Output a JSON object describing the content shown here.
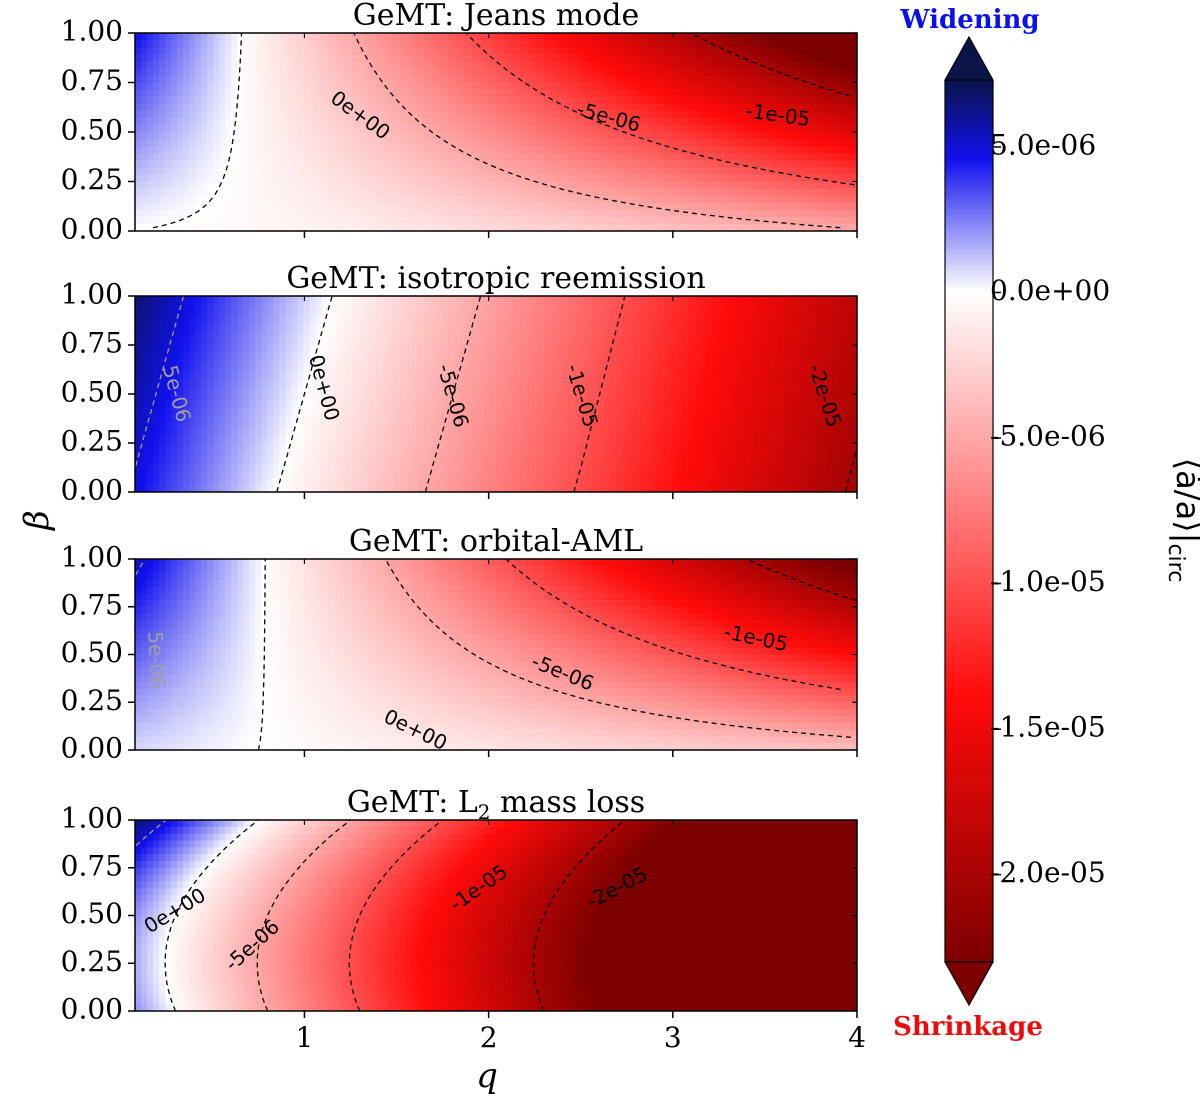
{
  "chart_data": {
    "type": "heatmap",
    "shared_xlabel": "q",
    "shared_ylabel": "β",
    "xlim": [
      0.08,
      4
    ],
    "ylim": [
      0,
      1
    ],
    "xticks": [
      "1",
      "2",
      "3",
      "4"
    ],
    "xtick_values": [
      1,
      2,
      3,
      4
    ],
    "yticks": [
      "0.00",
      "0.25",
      "0.50",
      "0.75",
      "1.00"
    ],
    "ytick_values": [
      0,
      0.25,
      0.5,
      0.75,
      1
    ],
    "panels": [
      {
        "title": "GeMT: Jeans mode",
        "title_prefix": "GeMT: Jeans mode",
        "title_sub": "",
        "title_suffix": "",
        "model": "jeans",
        "contour_labels": [
          {
            "text": "0e+00",
            "q": 1.3,
            "beta": 0.58,
            "angle": 36,
            "color": "#000000"
          },
          {
            "text": "-5e-06",
            "q": 2.65,
            "beta": 0.57,
            "angle": 15,
            "color": "#000000"
          },
          {
            "text": "-1e-05",
            "q": 3.57,
            "beta": 0.58,
            "angle": 8,
            "color": "#000000"
          }
        ]
      },
      {
        "title": "GeMT: isotropic reemission",
        "title_prefix": "GeMT: isotropic reemission",
        "title_sub": "",
        "title_suffix": "",
        "model": "iso",
        "contour_labels": [
          {
            "text": "5e-06",
            "q": 0.3,
            "beta": 0.5,
            "angle": 75,
            "color": "#a0a0a0"
          },
          {
            "text": "0e+00",
            "q": 1.1,
            "beta": 0.53,
            "angle": 75,
            "color": "#000000"
          },
          {
            "text": "-5e-06",
            "q": 1.8,
            "beta": 0.49,
            "angle": 74,
            "color": "#000000"
          },
          {
            "text": "-1e-05",
            "q": 2.5,
            "beta": 0.49,
            "angle": 73,
            "color": "#000000"
          },
          {
            "text": "-2e-05",
            "q": 3.82,
            "beta": 0.49,
            "angle": 72,
            "color": "#000000"
          }
        ]
      },
      {
        "title": "GeMT: orbital-AML",
        "title_prefix": "GeMT: orbital-AML",
        "title_sub": "",
        "title_suffix": "",
        "model": "orb",
        "contour_labels": [
          {
            "text": "5e-06",
            "q": 0.19,
            "beta": 0.47,
            "angle": 87,
            "color": "#a0a0a0"
          },
          {
            "text": "0e+00",
            "q": 1.6,
            "beta": 0.1,
            "angle": 26,
            "color": "#000000"
          },
          {
            "text": "-5e-06",
            "q": 2.4,
            "beta": 0.4,
            "angle": 22,
            "color": "#000000"
          },
          {
            "text": "-1e-05",
            "q": 3.45,
            "beta": 0.58,
            "angle": 12,
            "color": "#000000"
          }
        ]
      },
      {
        "title": "GeMT: L2 mass loss",
        "title_prefix": "GeMT: L",
        "title_sub": "2",
        "title_suffix": " mass loss",
        "model": "l2",
        "contour_labels": [
          {
            "text": "0e+00",
            "q": 0.3,
            "beta": 0.52,
            "angle": -31,
            "color": "#000000"
          },
          {
            "text": "-5e-06",
            "q": 0.72,
            "beta": 0.34,
            "angle": -42,
            "color": "#000000"
          },
          {
            "text": "-1e-05",
            "q": 1.95,
            "beta": 0.64,
            "angle": -35,
            "color": "#000000"
          },
          {
            "text": "-2e-05",
            "q": 2.7,
            "beta": 0.64,
            "angle": -28,
            "color": "#000000"
          }
        ]
      }
    ],
    "colorbar": {
      "min": -2.3e-05,
      "max": 7.3e-06,
      "ticks": [
        "5.0e-06",
        "0.0e+00",
        "-5.0e-06",
        "-1.0e-05",
        "-1.5e-05",
        "-2.0e-05"
      ],
      "tick_values": [
        5e-06,
        0,
        -5e-06,
        -1e-05,
        -1.5e-05,
        -2e-05
      ],
      "label": "⟨ȧ/a⟩|circ",
      "label_main": "⟨ȧ/a⟩|",
      "label_sub": "circ",
      "top_annotation": "Widening",
      "bottom_annotation": "Shrinkage",
      "top_color": "#0a10ee",
      "bottom_color": "#ee0a0a"
    },
    "colormap": {
      "deep_blue": "#0a1448",
      "blue": "#1111ee",
      "white": "#ffffff",
      "red": "#ff0a0a",
      "dark_red": "#7d0000"
    }
  }
}
